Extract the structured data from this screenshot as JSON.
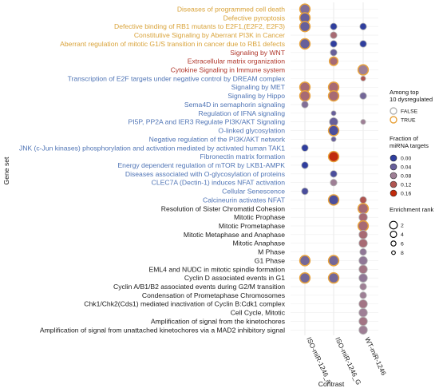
{
  "chart_data": {
    "type": "scatter",
    "title": "",
    "xlabel": "Contrast",
    "ylabel": "Gene set",
    "x_categories": [
      "ISO-miR-1246_a",
      "ISO-miR-1246_G",
      "WT-miR-1246"
    ],
    "grid": true,
    "gene_sets": [
      {
        "label": "Diseases of programmed cell death",
        "color": "#D9A33A"
      },
      {
        "label": "Defective pyroptosis",
        "color": "#D9A33A"
      },
      {
        "label": "Defective binding of RB1 mutants to E2F1,(E2F2, E2F3)",
        "color": "#D9A33A"
      },
      {
        "label": "Constitutive Signaling by Aberrant PI3K in Cancer",
        "color": "#D9A33A"
      },
      {
        "label": "Aberrant regulation of mitotic G1/S transition in cancer due to RB1 defects",
        "color": "#D9A33A"
      },
      {
        "label": "Signaling by WNT",
        "color": "#B0372B"
      },
      {
        "label": "Extracellular matrix organization",
        "color": "#B0372B"
      },
      {
        "label": "Cytokine Signaling in Immune system",
        "color": "#B0372B"
      },
      {
        "label": "Transcription of E2F targets under negative control by DREAM complex",
        "color": "#4F74B5"
      },
      {
        "label": "Signaling by MET",
        "color": "#4F74B5"
      },
      {
        "label": "Signaling by Hippo",
        "color": "#4F74B5"
      },
      {
        "label": "Sema4D in semaphorin signaling",
        "color": "#4F74B5"
      },
      {
        "label": "Regulation of IFNA signaling",
        "color": "#4F74B5"
      },
      {
        "label": "PI5P, PP2A and IER3 Regulate PI3K/AKT Signaling",
        "color": "#4F74B5"
      },
      {
        "label": "O-linked glycosylation",
        "color": "#4F74B5"
      },
      {
        "label": "Negative regulation of the PI3K/AKT network",
        "color": "#4F74B5"
      },
      {
        "label": "JNK (c-Jun kinases) phosphorylation and activation mediated by activated human TAK1",
        "color": "#4F74B5"
      },
      {
        "label": "Fibronectin matrix formation",
        "color": "#4F74B5"
      },
      {
        "label": "Energy dependent regulation of mTOR by LKB1-AMPK",
        "color": "#4F74B5"
      },
      {
        "label": "Diseases associated with O-glycosylation of proteins",
        "color": "#4F74B5"
      },
      {
        "label": "CLEC7A (Dectin-1) induces NFAT activation",
        "color": "#4F74B5"
      },
      {
        "label": "Cellular Senescence",
        "color": "#4F74B5"
      },
      {
        "label": "Calcineurin activates NFAT",
        "color": "#4F74B5"
      },
      {
        "label": "Resolution of Sister Chromatid Cohesion",
        "color": "#1a1a1a"
      },
      {
        "label": "Mitotic Prophase",
        "color": "#1a1a1a"
      },
      {
        "label": "Mitotic Prometaphase",
        "color": "#1a1a1a"
      },
      {
        "label": "Mitotic Metaphase and Anaphase",
        "color": "#1a1a1a"
      },
      {
        "label": "Mitotic Anaphase",
        "color": "#1a1a1a"
      },
      {
        "label": "M Phase",
        "color": "#1a1a1a"
      },
      {
        "label": "G1 Phase",
        "color": "#1a1a1a"
      },
      {
        "label": "EML4 and NUDC in mitotic spindle formation",
        "color": "#1a1a1a"
      },
      {
        "label": "Cyclin D associated events in G1",
        "color": "#1a1a1a"
      },
      {
        "label": "Cyclin A/B1/B2 associated events during G2/M transition",
        "color": "#1a1a1a"
      },
      {
        "label": "Condensation of Prometaphase Chromosomes",
        "color": "#1a1a1a"
      },
      {
        "label": "Chk1/Chk2(Cds1) mediated inactivation of Cyclin B:Cdk1 complex",
        "color": "#1a1a1a"
      },
      {
        "label": "Cell Cycle, Mitotic",
        "color": "#1a1a1a"
      },
      {
        "label": "Amplification of signal from the kinetochores",
        "color": "#1a1a1a"
      },
      {
        "label": "Amplification of signal from unattached kinetochores via a MAD2 inhibitory signal",
        "color": "#1a1a1a"
      }
    ],
    "points": [
      {
        "row": 0,
        "col": 0,
        "fraction": 0.06,
        "rank": 2,
        "top10": true
      },
      {
        "row": 1,
        "col": 0,
        "fraction": 0.04,
        "rank": 2,
        "top10": true
      },
      {
        "row": 2,
        "col": 0,
        "fraction": 0.04,
        "rank": 2,
        "top10": true
      },
      {
        "row": 2,
        "col": 1,
        "fraction": 0.0,
        "rank": 6,
        "top10": false
      },
      {
        "row": 2,
        "col": 2,
        "fraction": 0.0,
        "rank": 6,
        "top10": false
      },
      {
        "row": 3,
        "col": 1,
        "fraction": 0.1,
        "rank": 6,
        "top10": false
      },
      {
        "row": 4,
        "col": 0,
        "fraction": 0.04,
        "rank": 2,
        "top10": true
      },
      {
        "row": 4,
        "col": 1,
        "fraction": 0.0,
        "rank": 6,
        "top10": false
      },
      {
        "row": 4,
        "col": 2,
        "fraction": 0.0,
        "rank": 6,
        "top10": false
      },
      {
        "row": 5,
        "col": 1,
        "fraction": 0.04,
        "rank": 6,
        "top10": false
      },
      {
        "row": 6,
        "col": 1,
        "fraction": 0.1,
        "rank": 4,
        "top10": true
      },
      {
        "row": 7,
        "col": 2,
        "fraction": 0.08,
        "rank": 2,
        "top10": true
      },
      {
        "row": 8,
        "col": 2,
        "fraction": 0.12,
        "rank": 8,
        "top10": false
      },
      {
        "row": 9,
        "col": 0,
        "fraction": 0.1,
        "rank": 2,
        "top10": true
      },
      {
        "row": 9,
        "col": 1,
        "fraction": 0.1,
        "rank": 2,
        "top10": true
      },
      {
        "row": 10,
        "col": 0,
        "fraction": 0.1,
        "rank": 2,
        "top10": true
      },
      {
        "row": 10,
        "col": 1,
        "fraction": 0.1,
        "rank": 2,
        "top10": true
      },
      {
        "row": 10,
        "col": 2,
        "fraction": 0.05,
        "rank": 6,
        "top10": false
      },
      {
        "row": 11,
        "col": 0,
        "fraction": 0.06,
        "rank": 6,
        "top10": false
      },
      {
        "row": 12,
        "col": 1,
        "fraction": 0.04,
        "rank": 8,
        "top10": false
      },
      {
        "row": 13,
        "col": 1,
        "fraction": 0.04,
        "rank": 4,
        "top10": false
      },
      {
        "row": 13,
        "col": 2,
        "fraction": 0.08,
        "rank": 8,
        "top10": false
      },
      {
        "row": 14,
        "col": 1,
        "fraction": 0.02,
        "rank": 2,
        "top10": true
      },
      {
        "row": 15,
        "col": 1,
        "fraction": 0.04,
        "rank": 8,
        "top10": false
      },
      {
        "row": 16,
        "col": 0,
        "fraction": 0.0,
        "rank": 6,
        "top10": false
      },
      {
        "row": 17,
        "col": 1,
        "fraction": 0.16,
        "rank": 2,
        "top10": true
      },
      {
        "row": 18,
        "col": 0,
        "fraction": 0.0,
        "rank": 6,
        "top10": false
      },
      {
        "row": 19,
        "col": 1,
        "fraction": 0.02,
        "rank": 6,
        "top10": false
      },
      {
        "row": 20,
        "col": 1,
        "fraction": 0.08,
        "rank": 6,
        "top10": false
      },
      {
        "row": 21,
        "col": 0,
        "fraction": 0.02,
        "rank": 6,
        "top10": false
      },
      {
        "row": 22,
        "col": 1,
        "fraction": 0.02,
        "rank": 2,
        "top10": true
      },
      {
        "row": 22,
        "col": 2,
        "fraction": 0.12,
        "rank": 6,
        "top10": false
      },
      {
        "row": 23,
        "col": 2,
        "fraction": 0.1,
        "rank": 2,
        "top10": true
      },
      {
        "row": 24,
        "col": 2,
        "fraction": 0.1,
        "rank": 4,
        "top10": false
      },
      {
        "row": 25,
        "col": 2,
        "fraction": 0.1,
        "rank": 2,
        "top10": true
      },
      {
        "row": 26,
        "col": 2,
        "fraction": 0.1,
        "rank": 4,
        "top10": false
      },
      {
        "row": 27,
        "col": 2,
        "fraction": 0.1,
        "rank": 4,
        "top10": false
      },
      {
        "row": 28,
        "col": 2,
        "fraction": 0.07,
        "rank": 6,
        "top10": false
      },
      {
        "row": 29,
        "col": 0,
        "fraction": 0.05,
        "rank": 2,
        "top10": true
      },
      {
        "row": 29,
        "col": 1,
        "fraction": 0.05,
        "rank": 2,
        "top10": true
      },
      {
        "row": 29,
        "col": 2,
        "fraction": 0.07,
        "rank": 4,
        "top10": false
      },
      {
        "row": 30,
        "col": 2,
        "fraction": 0.09,
        "rank": 4,
        "top10": false
      },
      {
        "row": 31,
        "col": 0,
        "fraction": 0.05,
        "rank": 2,
        "top10": true
      },
      {
        "row": 31,
        "col": 1,
        "fraction": 0.05,
        "rank": 2,
        "top10": true
      },
      {
        "row": 31,
        "col": 2,
        "fraction": 0.07,
        "rank": 4,
        "top10": false
      },
      {
        "row": 32,
        "col": 2,
        "fraction": 0.08,
        "rank": 6,
        "top10": false
      },
      {
        "row": 33,
        "col": 2,
        "fraction": 0.08,
        "rank": 6,
        "top10": false
      },
      {
        "row": 34,
        "col": 2,
        "fraction": 0.09,
        "rank": 4,
        "top10": false
      },
      {
        "row": 35,
        "col": 2,
        "fraction": 0.08,
        "rank": 4,
        "top10": false
      },
      {
        "row": 36,
        "col": 2,
        "fraction": 0.09,
        "rank": 4,
        "top10": false
      },
      {
        "row": 37,
        "col": 2,
        "fraction": 0.08,
        "rank": 4,
        "top10": false
      }
    ],
    "legend": {
      "top10": {
        "title_lines": [
          "Among top",
          "10 dysregulated"
        ],
        "entries": [
          {
            "label": "FALSE",
            "stroke": "#b5b5b5"
          },
          {
            "label": "TRUE",
            "stroke": "#E8A33D"
          }
        ]
      },
      "fraction": {
        "title_lines": [
          "Fraction of",
          "miRNA targets"
        ],
        "entries": [
          {
            "label": "0.00",
            "value": 0.0
          },
          {
            "label": "0.04",
            "value": 0.04
          },
          {
            "label": "0.08",
            "value": 0.08
          },
          {
            "label": "0.12",
            "value": 0.12
          },
          {
            "label": "0.16",
            "value": 0.16
          }
        ]
      },
      "rank": {
        "title_lines": [
          "Enrichment rank"
        ],
        "entries": [
          {
            "label": "2",
            "value": 2
          },
          {
            "label": "4",
            "value": 4
          },
          {
            "label": "6",
            "value": 6
          },
          {
            "label": "8",
            "value": 8
          }
        ]
      }
    },
    "colors": {
      "fraction_low": "#2F3E9E",
      "fraction_mid": "#9E7F95",
      "fraction_high": "#C02A0C",
      "top10_true": "#E8A33D",
      "top10_false": "#b5b5b5",
      "grid": "#e3e3e3",
      "axis": "#333333"
    }
  }
}
